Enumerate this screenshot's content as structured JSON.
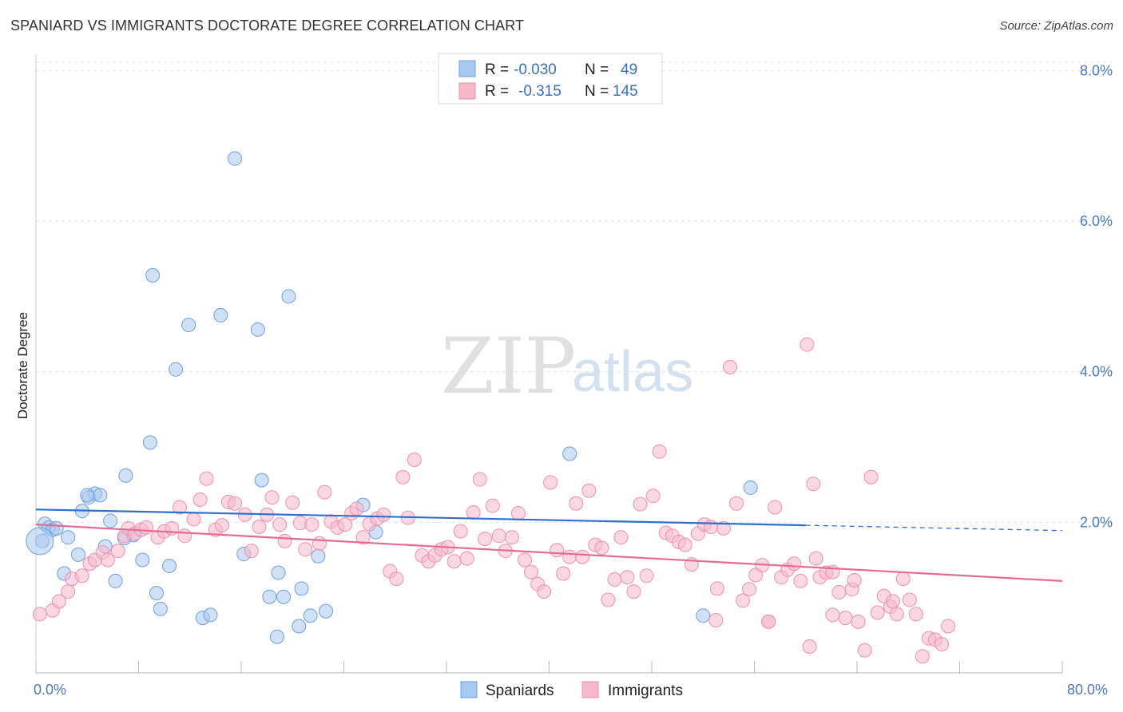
{
  "header": {
    "title": "SPANIARD VS IMMIGRANTS DOCTORATE DEGREE CORRELATION CHART",
    "source": "Source: ZipAtlas.com"
  },
  "watermark": {
    "zip": "ZIP",
    "atlas": "atlas"
  },
  "colors": {
    "blue_fill": "#a9c8f0",
    "blue_stroke": "#6e9fdc",
    "blue_line": "#2f6fcf",
    "pink_fill": "#f6b8cb",
    "pink_stroke": "#ee8fae",
    "pink_line": "#e56a95",
    "tick_label": "#4a78c2",
    "grid": "#e2e2e2"
  },
  "legend": {
    "rows": [
      {
        "r_label": "R =",
        "r_value": "-0.030",
        "n_label": "N =",
        "n_value": "49"
      },
      {
        "r_label": "R =",
        "r_value": "-0.315",
        "n_label": "N =",
        "n_value": "145"
      }
    ]
  },
  "bottom_legend": {
    "series1": "Spaniards",
    "series2": "Immigrants"
  },
  "chart_data": {
    "type": "scatter",
    "title": "SPANIARD VS IMMIGRANTS DOCTORATE DEGREE CORRELATION CHART",
    "ylabel": "Doctorate Degree",
    "xlim": [
      0,
      80
    ],
    "ylim": [
      0,
      8.3
    ],
    "x_tick_labels": [
      "0.0%",
      "80.0%"
    ],
    "y_ticks": [
      {
        "value": 2,
        "label": "2.0%"
      },
      {
        "value": 4,
        "label": "4.0%"
      },
      {
        "value": 6,
        "label": "6.0%"
      },
      {
        "value": 8,
        "label": "8.0%"
      }
    ],
    "grid": true,
    "legend_position": "top-center",
    "series": [
      {
        "name": "Spaniards",
        "R": -0.03,
        "N": 49,
        "trend": {
          "x0": 0,
          "y0": 2.17,
          "x1": 60,
          "y1": 1.96,
          "dash_to_x": 80,
          "dash_to_y": 1.89
        },
        "points": [
          [
            0.5,
            1.75
          ],
          [
            0.7,
            1.98
          ],
          [
            1.0,
            1.93
          ],
          [
            1.3,
            1.9
          ],
          [
            1.6,
            1.92
          ],
          [
            2.2,
            1.32
          ],
          [
            2.5,
            1.8
          ],
          [
            3.6,
            2.15
          ],
          [
            4.6,
            2.38
          ],
          [
            4.1,
            2.33
          ],
          [
            5.0,
            2.36
          ],
          [
            5.4,
            1.68
          ],
          [
            6.2,
            1.22
          ],
          [
            7.0,
            2.62
          ],
          [
            8.3,
            1.5
          ],
          [
            8.9,
            3.06
          ],
          [
            9.1,
            5.28
          ],
          [
            9.7,
            0.85
          ],
          [
            10.4,
            1.42
          ],
          [
            10.9,
            4.03
          ],
          [
            11.9,
            4.62
          ],
          [
            13.0,
            0.73
          ],
          [
            13.6,
            0.77
          ],
          [
            14.4,
            4.75
          ],
          [
            15.5,
            6.83
          ],
          [
            16.2,
            1.58
          ],
          [
            17.3,
            4.56
          ],
          [
            17.6,
            2.56
          ],
          [
            18.2,
            1.01
          ],
          [
            19.7,
            5.0
          ],
          [
            20.7,
            1.12
          ],
          [
            18.9,
            1.33
          ],
          [
            19.3,
            1.01
          ],
          [
            21.4,
            0.76
          ],
          [
            22.6,
            0.82
          ],
          [
            25.5,
            2.23
          ],
          [
            26.5,
            1.87
          ],
          [
            18.8,
            0.48
          ],
          [
            20.5,
            0.62
          ],
          [
            41.6,
            2.91
          ],
          [
            52.0,
            0.76
          ],
          [
            55.7,
            2.46
          ],
          [
            3.3,
            1.57
          ],
          [
            5.8,
            2.02
          ],
          [
            6.9,
            1.79
          ],
          [
            4.0,
            2.36
          ],
          [
            7.6,
            1.83
          ],
          [
            9.4,
            1.06
          ],
          [
            22.0,
            1.55
          ]
        ]
      },
      {
        "name": "Immigrants",
        "R": -0.315,
        "N": 145,
        "trend": {
          "x0": 0,
          "y0": 1.97,
          "x1": 80,
          "y1": 1.22
        },
        "points": [
          [
            0.3,
            0.78
          ],
          [
            1.3,
            0.83
          ],
          [
            1.8,
            0.95
          ],
          [
            2.5,
            1.08
          ],
          [
            2.8,
            1.25
          ],
          [
            3.6,
            1.29
          ],
          [
            4.2,
            1.45
          ],
          [
            4.6,
            1.5
          ],
          [
            5.2,
            1.6
          ],
          [
            5.6,
            1.5
          ],
          [
            6.4,
            1.62
          ],
          [
            6.9,
            1.82
          ],
          [
            7.2,
            1.92
          ],
          [
            7.7,
            1.85
          ],
          [
            8.2,
            1.9
          ],
          [
            8.6,
            1.93
          ],
          [
            9.5,
            1.8
          ],
          [
            10.0,
            1.88
          ],
          [
            10.6,
            1.92
          ],
          [
            11.2,
            2.2
          ],
          [
            11.6,
            1.82
          ],
          [
            12.3,
            2.04
          ],
          [
            12.8,
            2.3
          ],
          [
            13.3,
            2.58
          ],
          [
            14.0,
            1.9
          ],
          [
            14.5,
            1.96
          ],
          [
            15.0,
            2.27
          ],
          [
            15.5,
            2.25
          ],
          [
            16.3,
            2.1
          ],
          [
            16.8,
            1.62
          ],
          [
            17.4,
            1.94
          ],
          [
            18.0,
            2.1
          ],
          [
            18.4,
            2.33
          ],
          [
            19.0,
            1.97
          ],
          [
            19.4,
            1.75
          ],
          [
            20.0,
            2.26
          ],
          [
            20.6,
            1.99
          ],
          [
            21.0,
            1.64
          ],
          [
            21.5,
            1.97
          ],
          [
            22.1,
            1.72
          ],
          [
            22.5,
            2.4
          ],
          [
            23.0,
            2.01
          ],
          [
            23.5,
            1.93
          ],
          [
            24.1,
            1.97
          ],
          [
            24.6,
            2.12
          ],
          [
            25.0,
            2.18
          ],
          [
            25.5,
            1.8
          ],
          [
            26.0,
            1.98
          ],
          [
            26.6,
            2.05
          ],
          [
            27.1,
            2.1
          ],
          [
            27.6,
            1.35
          ],
          [
            28.1,
            1.25
          ],
          [
            28.6,
            2.6
          ],
          [
            29.0,
            2.06
          ],
          [
            29.5,
            2.83
          ],
          [
            30.1,
            1.56
          ],
          [
            30.6,
            1.48
          ],
          [
            31.1,
            1.56
          ],
          [
            31.6,
            1.64
          ],
          [
            32.1,
            1.67
          ],
          [
            32.6,
            1.48
          ],
          [
            33.1,
            1.88
          ],
          [
            33.6,
            1.52
          ],
          [
            34.1,
            2.13
          ],
          [
            34.6,
            2.57
          ],
          [
            35.0,
            1.78
          ],
          [
            35.6,
            2.22
          ],
          [
            36.1,
            1.82
          ],
          [
            36.6,
            1.62
          ],
          [
            37.1,
            1.8
          ],
          [
            37.6,
            2.12
          ],
          [
            38.1,
            1.5
          ],
          [
            38.6,
            1.34
          ],
          [
            39.1,
            1.18
          ],
          [
            39.6,
            1.08
          ],
          [
            40.1,
            2.53
          ],
          [
            40.6,
            1.63
          ],
          [
            41.1,
            1.32
          ],
          [
            41.6,
            1.54
          ],
          [
            42.1,
            2.25
          ],
          [
            42.6,
            1.54
          ],
          [
            43.1,
            2.42
          ],
          [
            43.6,
            1.7
          ],
          [
            44.1,
            1.66
          ],
          [
            44.6,
            0.97
          ],
          [
            45.1,
            1.24
          ],
          [
            45.6,
            1.8
          ],
          [
            46.1,
            1.27
          ],
          [
            46.6,
            1.08
          ],
          [
            47.1,
            2.24
          ],
          [
            47.6,
            1.29
          ],
          [
            48.1,
            2.35
          ],
          [
            48.6,
            2.94
          ],
          [
            49.1,
            1.86
          ],
          [
            49.6,
            1.82
          ],
          [
            50.1,
            1.74
          ],
          [
            50.6,
            1.7
          ],
          [
            51.1,
            1.44
          ],
          [
            51.6,
            1.85
          ],
          [
            52.1,
            1.97
          ],
          [
            52.6,
            1.94
          ],
          [
            53.1,
            1.12
          ],
          [
            53.6,
            1.92
          ],
          [
            54.1,
            4.06
          ],
          [
            54.6,
            2.25
          ],
          [
            55.1,
            0.96
          ],
          [
            55.6,
            1.11
          ],
          [
            56.1,
            1.3
          ],
          [
            56.6,
            1.43
          ],
          [
            57.1,
            0.68
          ],
          [
            57.6,
            2.2
          ],
          [
            58.1,
            1.27
          ],
          [
            58.6,
            1.37
          ],
          [
            59.1,
            1.45
          ],
          [
            59.6,
            1.22
          ],
          [
            60.1,
            4.36
          ],
          [
            60.6,
            2.51
          ],
          [
            61.1,
            1.27
          ],
          [
            61.6,
            1.33
          ],
          [
            62.1,
            1.34
          ],
          [
            62.6,
            1.07
          ],
          [
            63.1,
            0.73
          ],
          [
            63.6,
            1.11
          ],
          [
            64.1,
            0.68
          ],
          [
            64.6,
            0.3
          ],
          [
            65.1,
            2.6
          ],
          [
            65.6,
            0.8
          ],
          [
            66.1,
            1.02
          ],
          [
            66.6,
            0.88
          ],
          [
            67.1,
            0.78
          ],
          [
            67.6,
            1.25
          ],
          [
            68.1,
            0.97
          ],
          [
            68.6,
            0.78
          ],
          [
            69.1,
            0.22
          ],
          [
            69.6,
            0.46
          ],
          [
            70.1,
            0.44
          ],
          [
            70.6,
            0.38
          ],
          [
            71.1,
            0.62
          ],
          [
            60.3,
            0.35
          ],
          [
            53.0,
            0.7
          ],
          [
            57.1,
            0.68
          ],
          [
            62.1,
            0.77
          ],
          [
            66.8,
            0.95
          ],
          [
            63.8,
            1.23
          ],
          [
            60.8,
            1.52
          ]
        ]
      }
    ]
  }
}
